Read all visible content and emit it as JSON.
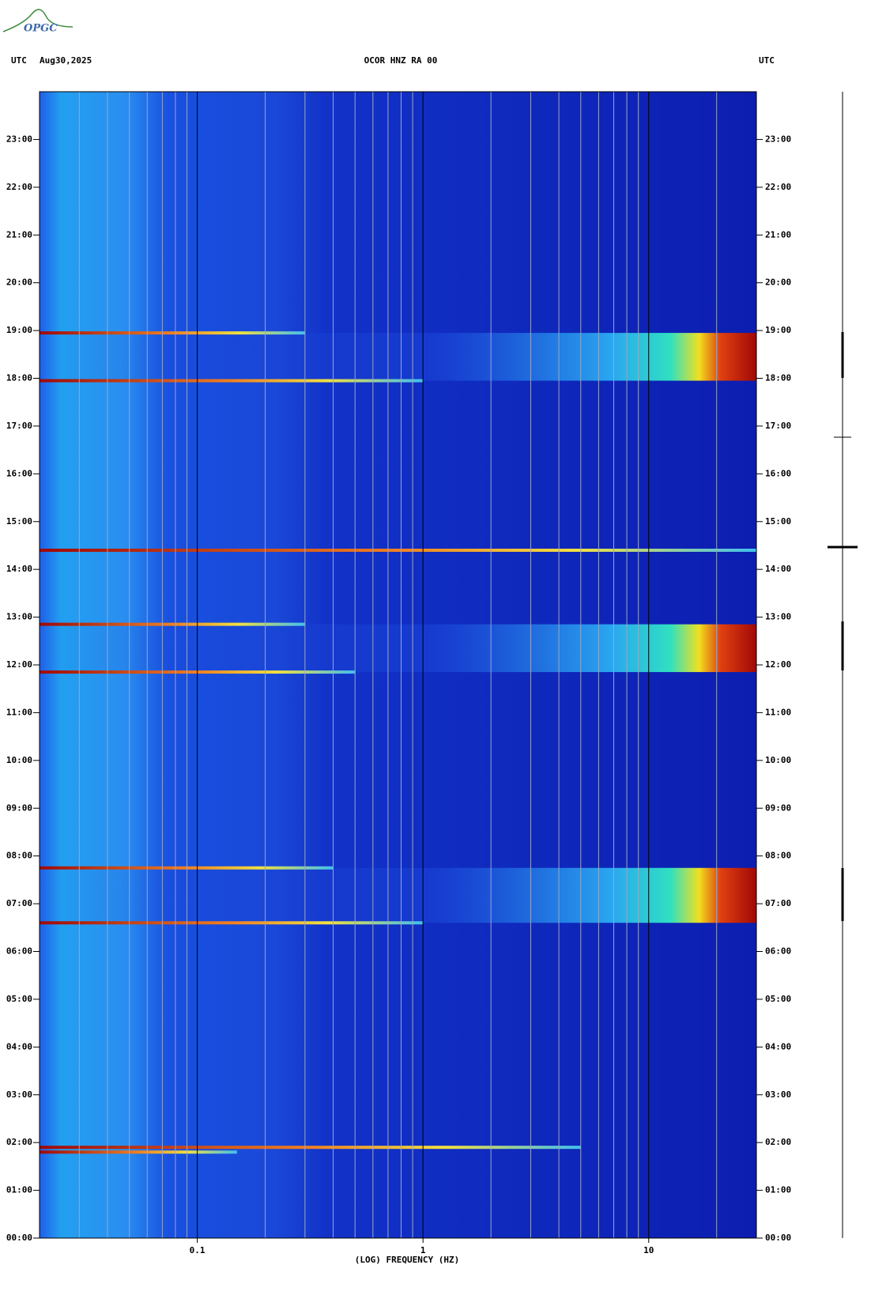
{
  "logo": "OPGC",
  "chart_data": {
    "type": "spectrogram",
    "header_left": "UTC",
    "header_date": "Aug30,2025",
    "title": "OCOR HNZ RA 00",
    "header_right": "UTC",
    "xlabel": "(LOG) FREQUENCY (HZ)",
    "xscale": "log",
    "xlim": [
      0.02,
      30
    ],
    "xticks": [
      0.1,
      1,
      10
    ],
    "xminor_ticks": [
      0.03,
      0.04,
      0.05,
      0.06,
      0.07,
      0.08,
      0.09,
      0.2,
      0.3,
      0.4,
      0.5,
      0.6,
      0.7,
      0.8,
      0.9,
      2,
      3,
      4,
      5,
      6,
      7,
      8,
      9,
      20
    ],
    "ylim": [
      0,
      24
    ],
    "yticks": [
      {
        "value": 0,
        "label": "00:00"
      },
      {
        "value": 1,
        "label": "01:00"
      },
      {
        "value": 2,
        "label": "02:00"
      },
      {
        "value": 3,
        "label": "03:00"
      },
      {
        "value": 4,
        "label": "04:00"
      },
      {
        "value": 5,
        "label": "05:00"
      },
      {
        "value": 6,
        "label": "06:00"
      },
      {
        "value": 7,
        "label": "07:00"
      },
      {
        "value": 8,
        "label": "08:00"
      },
      {
        "value": 9,
        "label": "09:00"
      },
      {
        "value": 10,
        "label": "10:00"
      },
      {
        "value": 11,
        "label": "11:00"
      },
      {
        "value": 12,
        "label": "12:00"
      },
      {
        "value": 13,
        "label": "13:00"
      },
      {
        "value": 14,
        "label": "14:00"
      },
      {
        "value": 15,
        "label": "15:00"
      },
      {
        "value": 16,
        "label": "16:00"
      },
      {
        "value": 17,
        "label": "17:00"
      },
      {
        "value": 18,
        "label": "18:00"
      },
      {
        "value": 19,
        "label": "19:00"
      },
      {
        "value": 20,
        "label": "20:00"
      },
      {
        "value": 21,
        "label": "21:00"
      },
      {
        "value": 22,
        "label": "22:00"
      },
      {
        "value": 23,
        "label": "23:00"
      }
    ],
    "bursts": [
      {
        "start": 6.6,
        "end": 7.75
      },
      {
        "start": 11.85,
        "end": 12.85
      },
      {
        "start": 17.95,
        "end": 18.95
      }
    ],
    "lines": [
      {
        "time": 1.8,
        "fmax": 0.15
      },
      {
        "time": 1.9,
        "fmax": 5
      },
      {
        "time": 6.6,
        "fmax": 1
      },
      {
        "time": 7.75,
        "fmax": 0.4
      },
      {
        "time": 11.85,
        "fmax": 0.5
      },
      {
        "time": 12.85,
        "fmax": 0.3
      },
      {
        "time": 14.4,
        "fmax": 30
      },
      {
        "time": 17.95,
        "fmax": 1
      },
      {
        "time": 18.95,
        "fmax": 0.3
      }
    ]
  }
}
